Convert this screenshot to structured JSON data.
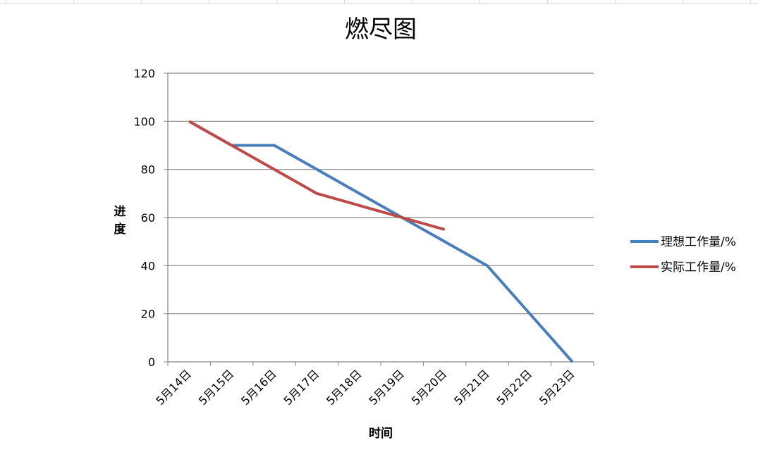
{
  "chart_data": {
    "type": "line",
    "title": "燃尽图",
    "xlabel": "时间",
    "ylabel": "进度",
    "categories": [
      "5月14日",
      "5月15日",
      "5月16日",
      "5月17日",
      "5月18日",
      "5月19日",
      "5月20日",
      "5月21日",
      "5月22日",
      "5月23日"
    ],
    "ylim": [
      0,
      120
    ],
    "yticks": [
      0,
      20,
      40,
      60,
      80,
      100,
      120
    ],
    "grid": true,
    "legend_position": "right",
    "series": [
      {
        "name": "理想工作量/%",
        "color": "#4a7ebb",
        "values": [
          100,
          90,
          90,
          80,
          70,
          60,
          50,
          40,
          20,
          0
        ]
      },
      {
        "name": "实际工作量/%",
        "color": "#be4b48",
        "values": [
          100,
          90,
          80,
          70,
          65,
          60,
          55,
          null,
          null,
          null
        ]
      }
    ]
  }
}
